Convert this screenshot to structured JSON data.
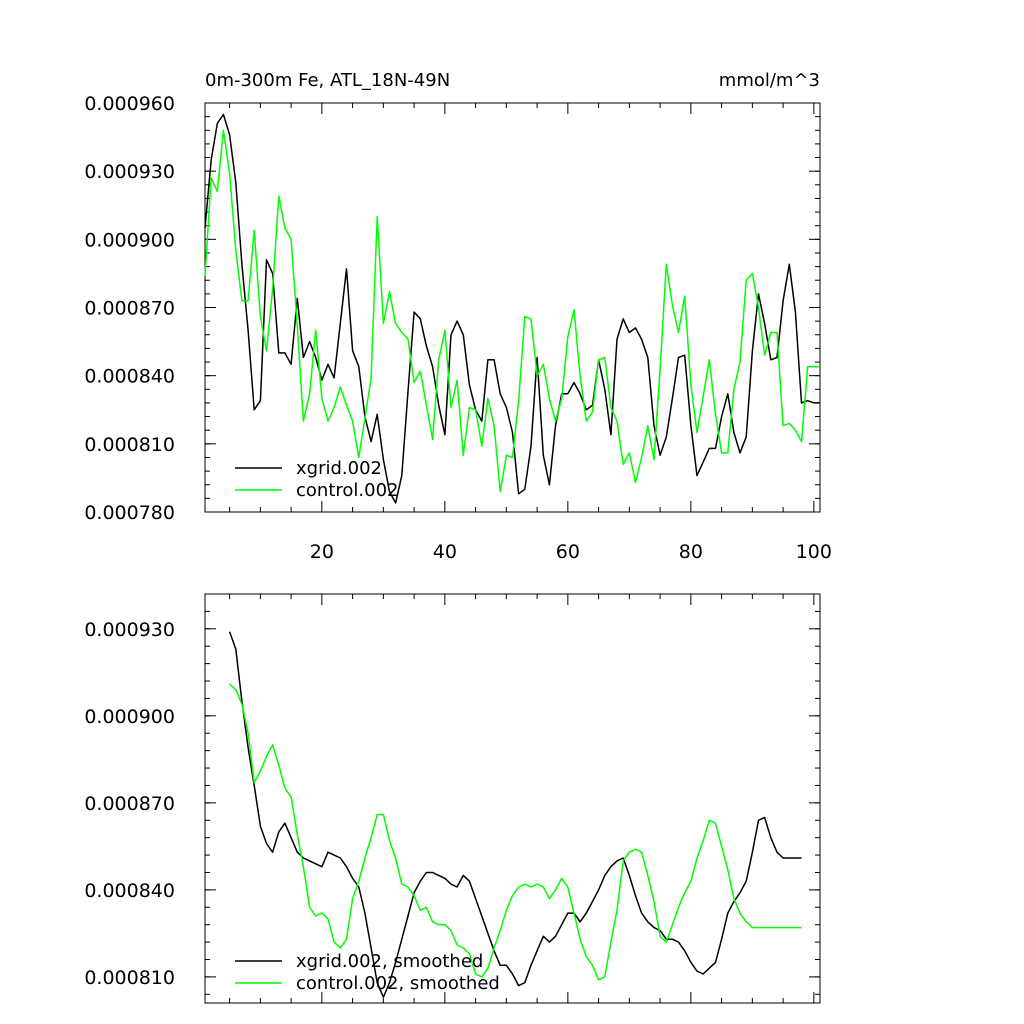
{
  "chart_data": [
    {
      "type": "line",
      "title": "0m-300m Fe, ATL_18N-49N",
      "units": "mmol/m^3",
      "xlim": [
        1,
        101
      ],
      "ylim": [
        0.00078,
        0.00096
      ],
      "x_ticks": [
        20,
        40,
        60,
        80,
        100
      ],
      "y_ticks": [
        "0.000780",
        "0.000810",
        "0.000840",
        "0.000870",
        "0.000900",
        "0.000930",
        "0.000960"
      ],
      "legend_position": "bottom-left",
      "series": [
        {
          "name": "xgrid.002",
          "color": "#000000",
          "x": [
            1,
            2,
            3,
            4,
            5,
            6,
            7,
            8,
            9,
            10,
            11,
            12,
            13,
            14,
            15,
            16,
            17,
            18,
            19,
            20,
            21,
            22,
            23,
            24,
            25,
            26,
            27,
            28,
            29,
            30,
            31,
            32,
            33,
            34,
            35,
            36,
            37,
            38,
            39,
            40,
            41,
            42,
            43,
            44,
            45,
            46,
            47,
            48,
            49,
            50,
            51,
            52,
            53,
            54,
            55,
            56,
            57,
            58,
            59,
            60,
            61,
            62,
            63,
            64,
            65,
            66,
            67,
            68,
            69,
            70,
            71,
            72,
            73,
            74,
            75,
            76,
            77,
            78,
            79,
            80,
            81,
            82,
            83,
            84,
            85,
            86,
            87,
            88,
            89,
            90,
            91,
            92,
            93,
            94,
            95,
            96,
            97,
            98,
            99,
            100,
            101
          ],
          "values": [
            0.000905,
            0.000935,
            0.000951,
            0.000955,
            0.000946,
            0.000925,
            0.000889,
            0.00086,
            0.000825,
            0.000829,
            0.000891,
            0.000885,
            0.00085,
            0.00085,
            0.000845,
            0.000874,
            0.000848,
            0.000855,
            0.000848,
            0.000838,
            0.000845,
            0.000839,
            0.000863,
            0.000887,
            0.000851,
            0.000844,
            0.000822,
            0.000811,
            0.000823,
            0.000803,
            0.000789,
            0.000784,
            0.000796,
            0.000833,
            0.000868,
            0.000865,
            0.000853,
            0.000844,
            0.000827,
            0.000814,
            0.000858,
            0.000864,
            0.000858,
            0.000836,
            0.000825,
            0.00082,
            0.000847,
            0.000847,
            0.000832,
            0.000826,
            0.000815,
            0.000788,
            0.00079,
            0.000809,
            0.000848,
            0.000805,
            0.000792,
            0.000818,
            0.000832,
            0.000832,
            0.000837,
            0.000832,
            0.000825,
            0.000827,
            0.000847,
            0.000834,
            0.000814,
            0.000856,
            0.000865,
            0.000859,
            0.000861,
            0.000856,
            0.000848,
            0.000818,
            0.000805,
            0.000813,
            0.00083,
            0.000848,
            0.000849,
            0.000818,
            0.000796,
            0.000802,
            0.000808,
            0.000808,
            0.000822,
            0.000832,
            0.000815,
            0.000806,
            0.000813,
            0.000851,
            0.000876,
            0.000863,
            0.000847,
            0.000848,
            0.000873,
            0.000889,
            0.000868,
            0.000828,
            0.000829,
            0.000828,
            0.000828
          ]
        },
        {
          "name": "control.002",
          "color": "#00ff00",
          "x": [
            1,
            2,
            3,
            4,
            5,
            6,
            7,
            8,
            9,
            10,
            11,
            12,
            13,
            14,
            15,
            16,
            17,
            18,
            19,
            20,
            21,
            22,
            23,
            24,
            25,
            26,
            27,
            28,
            29,
            30,
            31,
            32,
            33,
            34,
            35,
            36,
            37,
            38,
            39,
            40,
            41,
            42,
            43,
            44,
            45,
            46,
            47,
            48,
            49,
            50,
            51,
            52,
            53,
            54,
            55,
            56,
            57,
            58,
            59,
            60,
            61,
            62,
            63,
            64,
            65,
            66,
            67,
            68,
            69,
            70,
            71,
            72,
            73,
            74,
            75,
            76,
            77,
            78,
            79,
            80,
            81,
            82,
            83,
            84,
            85,
            86,
            87,
            88,
            89,
            90,
            91,
            92,
            93,
            94,
            95,
            96,
            97,
            98,
            99,
            100,
            101
          ],
          "values": [
            0.000884,
            0.000927,
            0.000921,
            0.000948,
            0.000929,
            0.000895,
            0.000873,
            0.000873,
            0.000904,
            0.000866,
            0.000851,
            0.000878,
            0.000919,
            0.000905,
            0.0009,
            0.000862,
            0.00082,
            0.000832,
            0.00086,
            0.00083,
            0.00082,
            0.000826,
            0.000835,
            0.000827,
            0.00082,
            0.000804,
            0.000821,
            0.000839,
            0.00091,
            0.000863,
            0.000877,
            0.000863,
            0.000859,
            0.000856,
            0.000837,
            0.000842,
            0.000827,
            0.000812,
            0.000847,
            0.00086,
            0.000826,
            0.000838,
            0.000805,
            0.000826,
            0.000825,
            0.000809,
            0.00083,
            0.000818,
            0.000789,
            0.000805,
            0.000804,
            0.000829,
            0.000866,
            0.000865,
            0.00084,
            0.000845,
            0.00083,
            0.00082,
            0.00083,
            0.000857,
            0.000869,
            0.00084,
            0.00082,
            0.000824,
            0.000847,
            0.000848,
            0.000826,
            0.00082,
            0.000801,
            0.000806,
            0.000793,
            0.000804,
            0.000818,
            0.000803,
            0.000843,
            0.000889,
            0.000871,
            0.000859,
            0.000875,
            0.000836,
            0.000815,
            0.000831,
            0.000847,
            0.000823,
            0.000806,
            0.000806,
            0.000834,
            0.000846,
            0.000882,
            0.000885,
            0.00087,
            0.000849,
            0.000859,
            0.000859,
            0.000818,
            0.000819,
            0.000816,
            0.000811,
            0.000844,
            0.000844,
            0.000844
          ]
        }
      ]
    },
    {
      "type": "line",
      "xlim": [
        1,
        101
      ],
      "ylim": [
        0.000801,
        0.000942
      ],
      "y_ticks": [
        "0.000810",
        "0.000840",
        "0.000870",
        "0.000900",
        "0.000930"
      ],
      "legend_position": "bottom-left",
      "series": [
        {
          "name": "xgrid.002, smoothed",
          "color": "#000000",
          "x": [
            5,
            6,
            7,
            8,
            9,
            10,
            11,
            12,
            13,
            14,
            15,
            16,
            17,
            18,
            19,
            20,
            21,
            22,
            23,
            24,
            25,
            26,
            27,
            28,
            29,
            30,
            31,
            32,
            33,
            34,
            35,
            36,
            37,
            38,
            39,
            40,
            41,
            42,
            43,
            44,
            45,
            46,
            47,
            48,
            49,
            50,
            51,
            52,
            53,
            54,
            55,
            56,
            57,
            58,
            59,
            60,
            61,
            62,
            63,
            64,
            65,
            66,
            67,
            68,
            69,
            70,
            71,
            72,
            73,
            74,
            75,
            76,
            77,
            78,
            79,
            80,
            81,
            82,
            83,
            84,
            85,
            86,
            87,
            88,
            89,
            90,
            91,
            92,
            93,
            94,
            95,
            96,
            97,
            98
          ],
          "values": [
            0.000929,
            0.000923,
            0.000905,
            0.000889,
            0.000876,
            0.000862,
            0.000856,
            0.000853,
            0.00086,
            0.000863,
            0.000858,
            0.000853,
            0.000851,
            0.00085,
            0.000849,
            0.000848,
            0.000853,
            0.000852,
            0.000851,
            0.000848,
            0.000844,
            0.000841,
            0.000832,
            0.00082,
            0.000808,
            0.000803,
            0.000808,
            0.000815,
            0.000823,
            0.000831,
            0.000839,
            0.000843,
            0.000846,
            0.000846,
            0.000845,
            0.000844,
            0.000842,
            0.000841,
            0.000845,
            0.000843,
            0.000837,
            0.000831,
            0.000825,
            0.000819,
            0.000814,
            0.000814,
            0.000811,
            0.000807,
            0.000808,
            0.000814,
            0.000819,
            0.000824,
            0.000822,
            0.000824,
            0.000828,
            0.000832,
            0.000832,
            0.000829,
            0.000832,
            0.000836,
            0.00084,
            0.000845,
            0.000848,
            0.00085,
            0.000851,
            0.000845,
            0.000838,
            0.000832,
            0.000829,
            0.000827,
            0.000826,
            0.000823,
            0.000823,
            0.000822,
            0.000819,
            0.000815,
            0.000812,
            0.000811,
            0.000813,
            0.000815,
            0.000823,
            0.000832,
            0.000836,
            0.000839,
            0.000843,
            0.000853,
            0.000864,
            0.000865,
            0.000858,
            0.000853,
            0.000851,
            0.000851,
            0.000851,
            0.000851
          ]
        },
        {
          "name": "control.002, smoothed",
          "color": "#00ff00",
          "x": [
            5,
            6,
            7,
            8,
            9,
            10,
            11,
            12,
            13,
            14,
            15,
            16,
            17,
            18,
            19,
            20,
            21,
            22,
            23,
            24,
            25,
            26,
            27,
            28,
            29,
            30,
            31,
            32,
            33,
            34,
            35,
            36,
            37,
            38,
            39,
            40,
            41,
            42,
            43,
            44,
            45,
            46,
            47,
            48,
            49,
            50,
            51,
            52,
            53,
            54,
            55,
            56,
            57,
            58,
            59,
            60,
            61,
            62,
            63,
            64,
            65,
            66,
            67,
            68,
            69,
            70,
            71,
            72,
            73,
            74,
            75,
            76,
            77,
            78,
            79,
            80,
            81,
            82,
            83,
            84,
            85,
            86,
            87,
            88,
            89,
            90,
            91,
            92,
            93,
            94,
            95,
            96,
            97,
            98
          ],
          "values": [
            0.000911,
            0.000909,
            0.000904,
            0.000894,
            0.000877,
            0.000881,
            0.000886,
            0.00089,
            0.000883,
            0.000875,
            0.000872,
            0.000859,
            0.000848,
            0.000834,
            0.000831,
            0.000832,
            0.00083,
            0.000822,
            0.00082,
            0.000823,
            0.000837,
            0.000843,
            0.000851,
            0.000858,
            0.000866,
            0.000866,
            0.000857,
            0.000851,
            0.000842,
            0.000841,
            0.000838,
            0.000833,
            0.000834,
            0.000829,
            0.000828,
            0.000828,
            0.000826,
            0.000821,
            0.00082,
            0.000818,
            0.000811,
            0.00081,
            0.000813,
            0.00082,
            0.000826,
            0.000833,
            0.000838,
            0.000841,
            0.000842,
            0.000841,
            0.000842,
            0.000841,
            0.000837,
            0.00084,
            0.000844,
            0.000841,
            0.000832,
            0.000823,
            0.000817,
            0.000814,
            0.000809,
            0.00081,
            0.000822,
            0.000833,
            0.00085,
            0.000853,
            0.000854,
            0.000853,
            0.000845,
            0.000836,
            0.000824,
            0.000822,
            0.000828,
            0.000834,
            0.000839,
            0.000843,
            0.000851,
            0.000857,
            0.000864,
            0.000863,
            0.000855,
            0.000847,
            0.000837,
            0.000832,
            0.000829,
            0.000827,
            0.000827,
            0.000827,
            0.000827,
            0.000827,
            0.000827,
            0.000827,
            0.000827,
            0.000827
          ]
        }
      ]
    }
  ]
}
